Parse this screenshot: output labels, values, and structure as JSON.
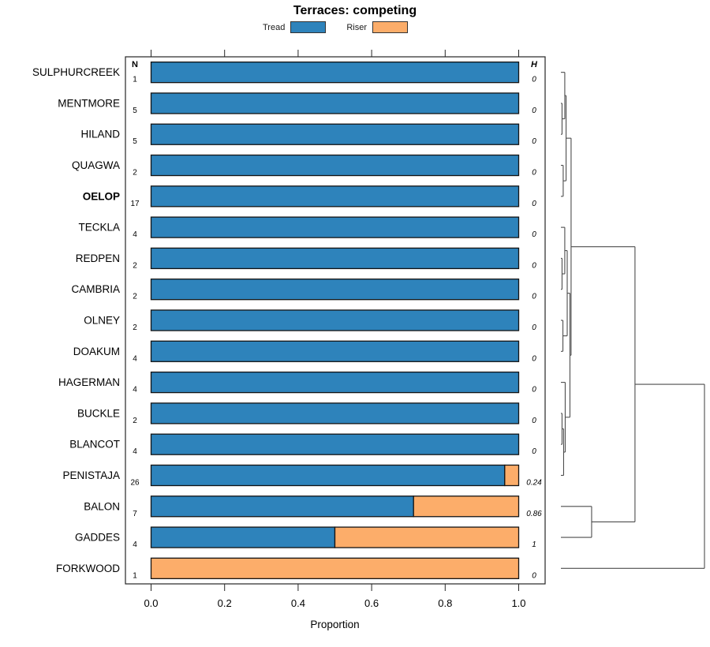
{
  "title": "Terraces: competing",
  "legend": {
    "items": [
      {
        "label": "Tread",
        "color": "#2E83BB"
      },
      {
        "label": "Riser",
        "color": "#FCAD6A"
      }
    ]
  },
  "columns": {
    "n": "N",
    "h": "H"
  },
  "x_axis": {
    "label": "Proportion",
    "ticks": [
      "0.0",
      "0.2",
      "0.4",
      "0.6",
      "0.8",
      "1.0"
    ],
    "range": [
      0,
      1
    ]
  },
  "chart_data": {
    "type": "bar",
    "orientation": "horizontal-stacked",
    "title": "Terraces: competing",
    "xlabel": "Proportion",
    "xlim": [
      0,
      1
    ],
    "legend_position": "top",
    "categories": [
      "SULPHURCREEK",
      "MENTMORE",
      "HILAND",
      "QUAGWA",
      "OELOP",
      "TECKLA",
      "REDPEN",
      "CAMBRIA",
      "OLNEY",
      "DOAKUM",
      "HAGERMAN",
      "BUCKLE",
      "BLANCOT",
      "PENISTAJA",
      "BALON",
      "GADDES",
      "FORKWOOD"
    ],
    "bold_categories": [
      "OELOP"
    ],
    "series": [
      {
        "name": "Tread",
        "color": "#2E83BB",
        "values": [
          1,
          1,
          1,
          1,
          1,
          1,
          1,
          1,
          1,
          1,
          1,
          1,
          1,
          0.962,
          0.714,
          0.5,
          0
        ]
      },
      {
        "name": "Riser",
        "color": "#FCAD6A",
        "values": [
          0,
          0,
          0,
          0,
          0,
          0,
          0,
          0,
          0,
          0,
          0,
          0,
          0,
          0.038,
          0.286,
          0.5,
          1
        ]
      }
    ],
    "n_values": [
      1,
      5,
      5,
      2,
      17,
      4,
      2,
      2,
      2,
      4,
      4,
      2,
      4,
      26,
      7,
      4,
      1
    ],
    "h_values": [
      "0",
      "0",
      "0",
      "0",
      "0",
      "0",
      "0",
      "0",
      "0",
      "0",
      "0",
      "0",
      "0",
      "0.24",
      "0.86",
      "1",
      "0"
    ]
  },
  "dendrogram": {
    "merges": [
      {
        "a": "MENTMORE",
        "b": "HILAND",
        "h": 0.008
      },
      {
        "a": "SULPHURCREEK",
        "b": "m0",
        "h": 0.027
      },
      {
        "a": "QUAGWA",
        "b": "OELOP",
        "h": 0.016
      },
      {
        "a": "m1",
        "b": "m2",
        "h": 0.036
      },
      {
        "a": "REDPEN",
        "b": "CAMBRIA",
        "h": 0.008
      },
      {
        "a": "TECKLA",
        "b": "m4",
        "h": 0.027
      },
      {
        "a": "OLNEY",
        "b": "DOAKUM",
        "h": 0.014
      },
      {
        "a": "m5",
        "b": "m6",
        "h": 0.044
      },
      {
        "a": "BUCKLE",
        "b": "BLANCOT",
        "h": 0.008
      },
      {
        "a": "m8",
        "b": "PENISTAJA",
        "h": 0.019
      },
      {
        "a": "HAGERMAN",
        "b": "m9",
        "h": 0.03
      },
      {
        "a": "m7",
        "b": "m10",
        "h": 0.063
      },
      {
        "a": "m3",
        "b": "m11",
        "h": 0.071
      },
      {
        "a": "BALON",
        "b": "GADDES",
        "h": 0.214
      },
      {
        "a": "m12",
        "b": "m13",
        "h": 0.516
      },
      {
        "a": "m14",
        "b": "FORKWOOD",
        "h": 1.0
      }
    ]
  }
}
